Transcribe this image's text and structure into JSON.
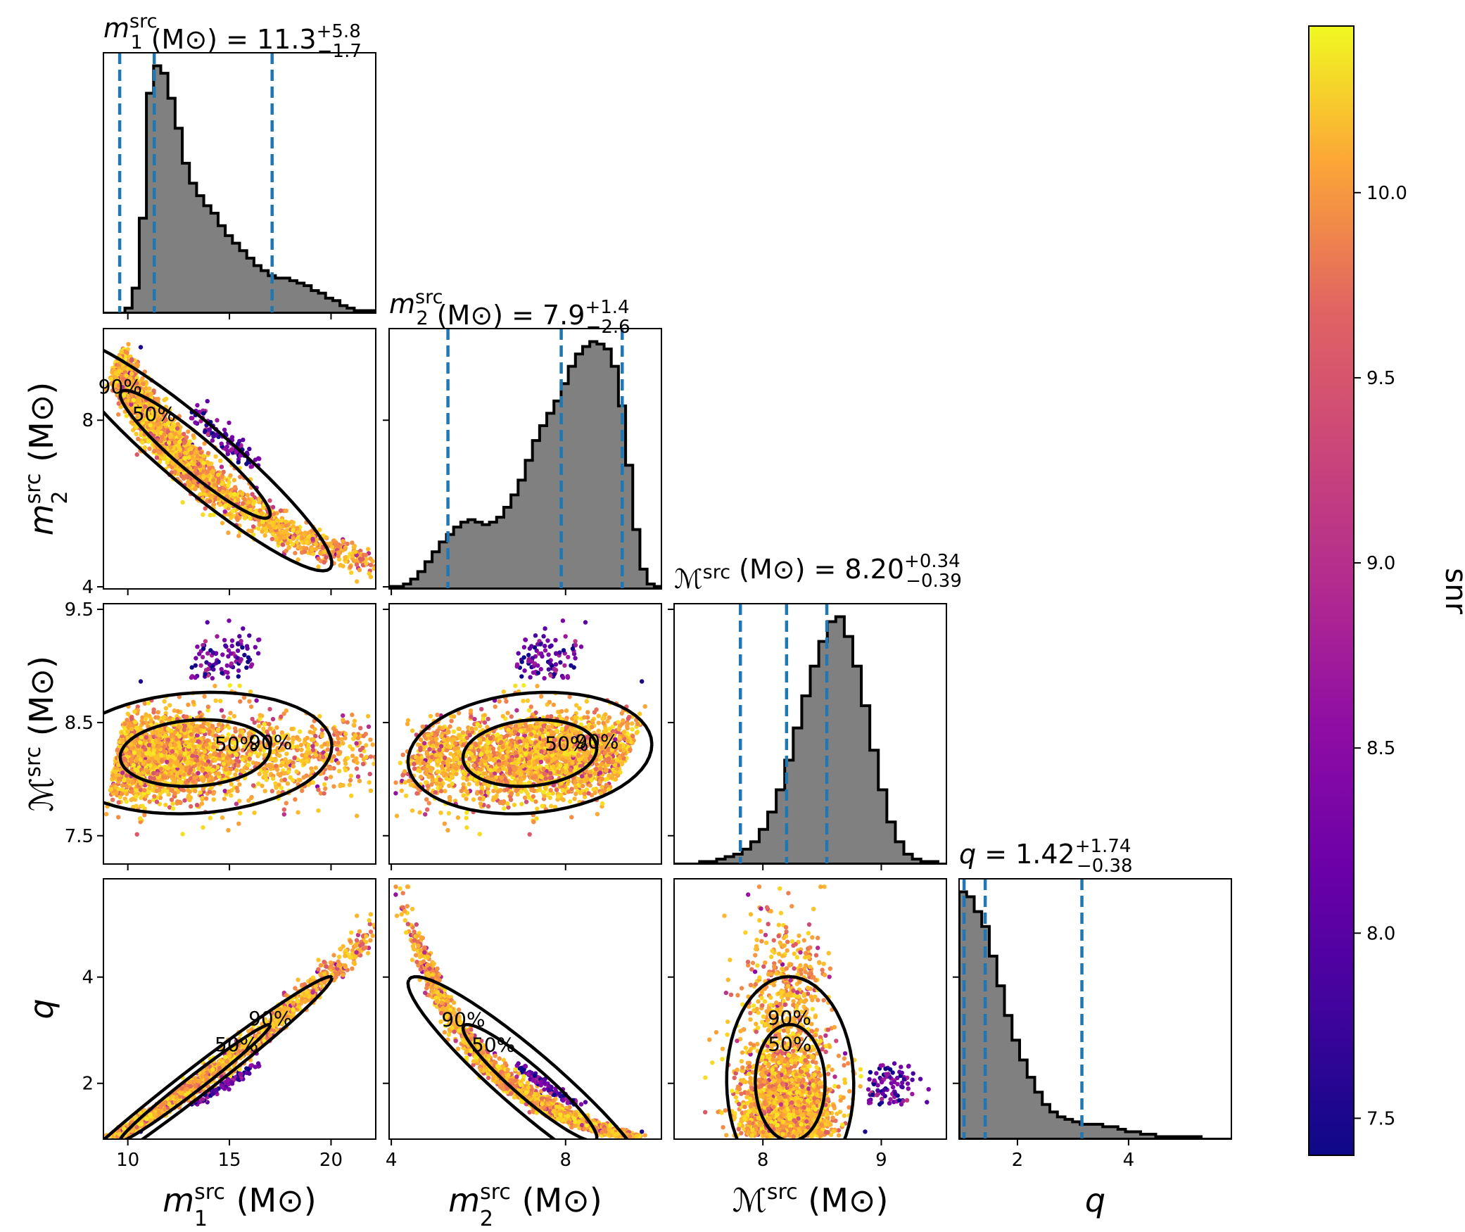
{
  "chart_data": {
    "type": "corner",
    "description_note": "",
    "parameters": [
      {
        "key": "m1",
        "sym": "m",
        "sub": "1",
        "sup": "src",
        "unit": "(M⊙)",
        "range": [
          8.8,
          22.2
        ],
        "ticks": [
          "10",
          "15",
          "20"
        ],
        "tick_values": [
          10,
          15,
          20
        ],
        "title": {
          "prefix": "m",
          "sub": "1",
          "sup": "src",
          "unit": " (M⊙) = ",
          "value": "11.3",
          "plus": "+5.8",
          "minus": "−1.7"
        },
        "quantiles": [
          9.6,
          11.3,
          17.1
        ]
      },
      {
        "key": "m2",
        "sym": "m",
        "sub": "2",
        "sup": "src",
        "unit": "(M⊙)",
        "range": [
          3.95,
          10.2
        ],
        "ticks": [
          "4",
          "8"
        ],
        "tick_values": [
          4,
          8
        ],
        "title": {
          "prefix": "m",
          "sub": "2",
          "sup": "src",
          "unit": " (M⊙) = ",
          "value": "7.9",
          "plus": "+1.4",
          "minus": "−2.6"
        },
        "quantiles": [
          5.3,
          7.9,
          9.3
        ]
      },
      {
        "key": "mc",
        "sym": "ℳ",
        "sub": "",
        "sup": "src",
        "unit": "(M⊙)",
        "range": [
          7.25,
          9.55
        ],
        "ticks": [
          "8",
          "9"
        ],
        "tick_values": [
          8,
          9
        ],
        "title": {
          "prefix": "ℳ",
          "sub": "",
          "sup": "src",
          "unit": " (M⊙) = ",
          "value": "8.20",
          "plus": "+0.34",
          "minus": "−0.39"
        },
        "quantiles": [
          7.81,
          8.2,
          8.54
        ]
      },
      {
        "key": "q",
        "sym": "q",
        "sub": "",
        "sup": "",
        "unit": "",
        "range": [
          0.95,
          5.85
        ],
        "ticks": [
          "2",
          "4"
        ],
        "tick_values": [
          2,
          4
        ],
        "title": {
          "prefix": "q",
          "sub": "",
          "sup": "",
          "unit": " = ",
          "value": "1.42",
          "plus": "+1.74",
          "minus": "−0.38"
        },
        "quantiles": [
          1.04,
          1.42,
          3.16
        ]
      }
    ],
    "y_ticks": {
      "m2": {
        "labels": [
          "8",
          "4"
        ],
        "values": [
          8,
          4
        ],
        "range": [
          3.95,
          10.2
        ]
      },
      "mc": {
        "labels": [
          "9.5",
          "8.5",
          "7.5"
        ],
        "values": [
          9.5,
          8.5,
          7.5
        ],
        "range": [
          7.25,
          9.55
        ]
      },
      "q": {
        "labels": [
          "4",
          "2"
        ],
        "values": [
          4,
          2
        ],
        "range": [
          0.95,
          5.85
        ]
      }
    },
    "histograms": {
      "m1": [
        0,
        0,
        0,
        2,
        10,
        38,
        88,
        99,
        96,
        86,
        74,
        60,
        52,
        47,
        43,
        40,
        35,
        31,
        28,
        25,
        22,
        19,
        17,
        15,
        14,
        14,
        13,
        12,
        11,
        9,
        8,
        6,
        5,
        3,
        2,
        1,
        1,
        1
      ],
      "m2": [
        1,
        1,
        2,
        4,
        7,
        11,
        15,
        19,
        22,
        25,
        27,
        28,
        27,
        26,
        27,
        29,
        33,
        38,
        44,
        52,
        60,
        66,
        71,
        76,
        83,
        90,
        95,
        98,
        100,
        99,
        97,
        90,
        74,
        50,
        24,
        8,
        2,
        1
      ],
      "mc": [
        0,
        0,
        0,
        1,
        1,
        2,
        3,
        4,
        6,
        9,
        14,
        21,
        30,
        42,
        55,
        68,
        80,
        90,
        98,
        100,
        92,
        80,
        64,
        46,
        30,
        17,
        9,
        4,
        2,
        1,
        1,
        0
      ],
      "q": [
        100,
        98,
        92,
        86,
        74,
        62,
        50,
        40,
        32,
        25,
        19,
        14,
        11,
        9,
        8,
        7,
        6,
        6,
        6,
        5,
        5,
        4,
        3,
        3,
        2,
        2,
        1,
        1,
        1,
        1,
        1,
        1,
        0,
        0,
        0,
        0
      ]
    },
    "contour_labels": [
      "50%",
      "90%"
    ],
    "colorbar": {
      "label": "snr",
      "cmap": "plasma",
      "range": [
        7.4,
        10.45
      ],
      "ticks": [
        "7.5",
        "8.0",
        "8.5",
        "9.0",
        "9.5",
        "10.0"
      ],
      "tick_values": [
        7.5,
        8.0,
        8.5,
        9.0,
        9.5,
        10.0
      ]
    }
  }
}
